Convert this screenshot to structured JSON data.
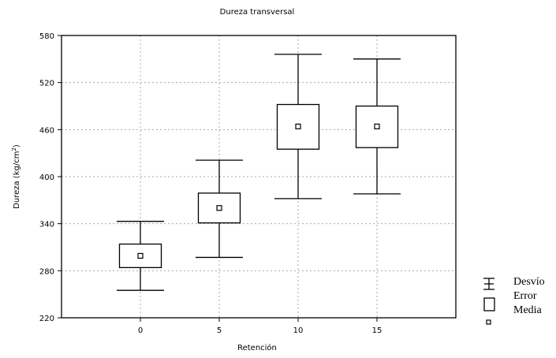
{
  "chart_data": {
    "type": "boxplot",
    "title": "Dureza transversal",
    "xlabel": "Retención",
    "ylabel": "Dureza (kg/cm 2)",
    "ylabel_main": "Dureza (kg/cm",
    "ylabel_sup": "2",
    "ylabel_tail": ")",
    "ylim": [
      220,
      580
    ],
    "yticks": [
      220,
      280,
      340,
      400,
      460,
      520,
      580
    ],
    "categories": [
      "0",
      "5",
      "10",
      "15"
    ],
    "grid": true,
    "legend_placement": "right",
    "series": [
      {
        "category": "0",
        "mean": 299,
        "error_low": 284,
        "error_high": 314,
        "sd_low": 255,
        "sd_high": 343
      },
      {
        "category": "5",
        "mean": 360,
        "error_low": 341,
        "error_high": 379,
        "sd_low": 297,
        "sd_high": 421
      },
      {
        "category": "10",
        "mean": 464,
        "error_low": 435,
        "error_high": 492,
        "sd_low": 372,
        "sd_high": 556
      },
      {
        "category": "15",
        "mean": 464,
        "error_low": 437,
        "error_high": 490,
        "sd_low": 378,
        "sd_high": 550
      }
    ]
  },
  "legend": {
    "items": [
      {
        "label": "Desvío",
        "symbol": "whisker"
      },
      {
        "label": "Error",
        "symbol": "box"
      },
      {
        "label": "Media",
        "symbol": "mean"
      }
    ]
  },
  "colors": {
    "stroke": "#000000",
    "grid": "#aaaaaa",
    "background": "#ffffff"
  }
}
